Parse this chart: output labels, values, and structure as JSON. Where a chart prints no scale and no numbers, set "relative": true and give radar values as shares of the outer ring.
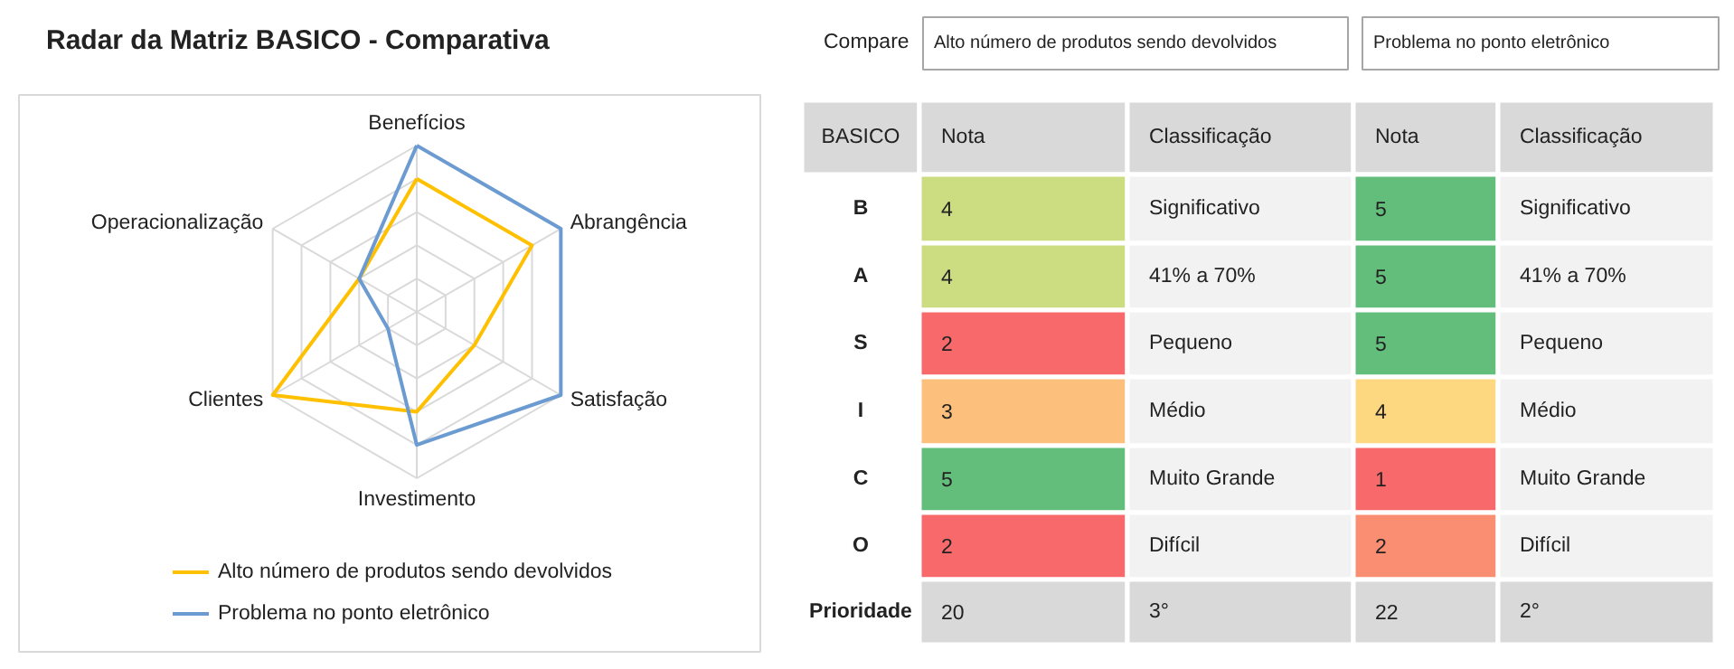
{
  "chart_data": [
    {
      "type": "radar",
      "title": "Radar da Matriz BASICO - Comparativa",
      "annotations": [
        "Compare"
      ],
      "categories": [
        "Benefícios",
        "Abrangência",
        "Satisfação",
        "Investimento",
        "Clientes",
        "Operacionalização"
      ],
      "relative": true,
      "legend": "bottom",
      "series": [
        {
          "name": "Alto número de produtos sendo devolvidos",
          "color": "#ffc000",
          "values": [
            0.8,
            0.8,
            0.4,
            0.6,
            1.0,
            0.4
          ]
        },
        {
          "name": "Problema no ponto eletrônico",
          "color": "#6b9bd1",
          "values": [
            1.0,
            1.0,
            1.0,
            0.8,
            0.2,
            0.4
          ]
        }
      ]
    },
    {
      "type": "heatmap",
      "ylabel": "BASICO",
      "categories": [
        "Nota",
        "Classificação",
        "Nota",
        "Classificação"
      ],
      "y_categories": [
        "B",
        "A",
        "S",
        "I",
        "C",
        "O",
        "Prioridade"
      ],
      "cells": [
        [
          4,
          null,
          5,
          null
        ],
        [
          4,
          null,
          5,
          null
        ],
        [
          2,
          null,
          5,
          null
        ],
        [
          3,
          null,
          4,
          null
        ],
        [
          5,
          null,
          1,
          null
        ],
        [
          2,
          null,
          2,
          null
        ],
        [
          20,
          null,
          22,
          null
        ]
      ],
      "cell_labels": [
        [
          "4",
          "Significativo",
          "5",
          "Significativo"
        ],
        [
          "4",
          "41% a 70%",
          "5",
          "41% a 70%"
        ],
        [
          "2",
          "Pequeno",
          "5",
          "Pequeno"
        ],
        [
          "3",
          "Médio",
          "4",
          "Médio"
        ],
        [
          "5",
          "Muito Grande",
          "1",
          "Muito Grande"
        ],
        [
          "2",
          "Difícil",
          "2",
          "Difícil"
        ],
        [
          "20",
          "3°",
          "22",
          "2°"
        ]
      ],
      "colors": [
        [
          null,
          "#f2f2f2",
          null,
          "#f2f2f2"
        ],
        [
          null,
          "#f2f2f2",
          null,
          "#f2f2f2"
        ],
        [
          null,
          "#f2f2f2",
          null,
          "#f2f2f2"
        ],
        [
          null,
          "#f2f2f2",
          null,
          "#f2f2f2"
        ],
        [
          null,
          "#f2f2f2",
          null,
          "#f2f2f2"
        ],
        [
          null,
          "#f2f2f2",
          null,
          "#f2f2f2"
        ],
        [
          "#d9d9d9",
          "#d9d9d9",
          "#d9d9d9",
          "#d9d9d9"
        ]
      ]
    }
  ]
}
